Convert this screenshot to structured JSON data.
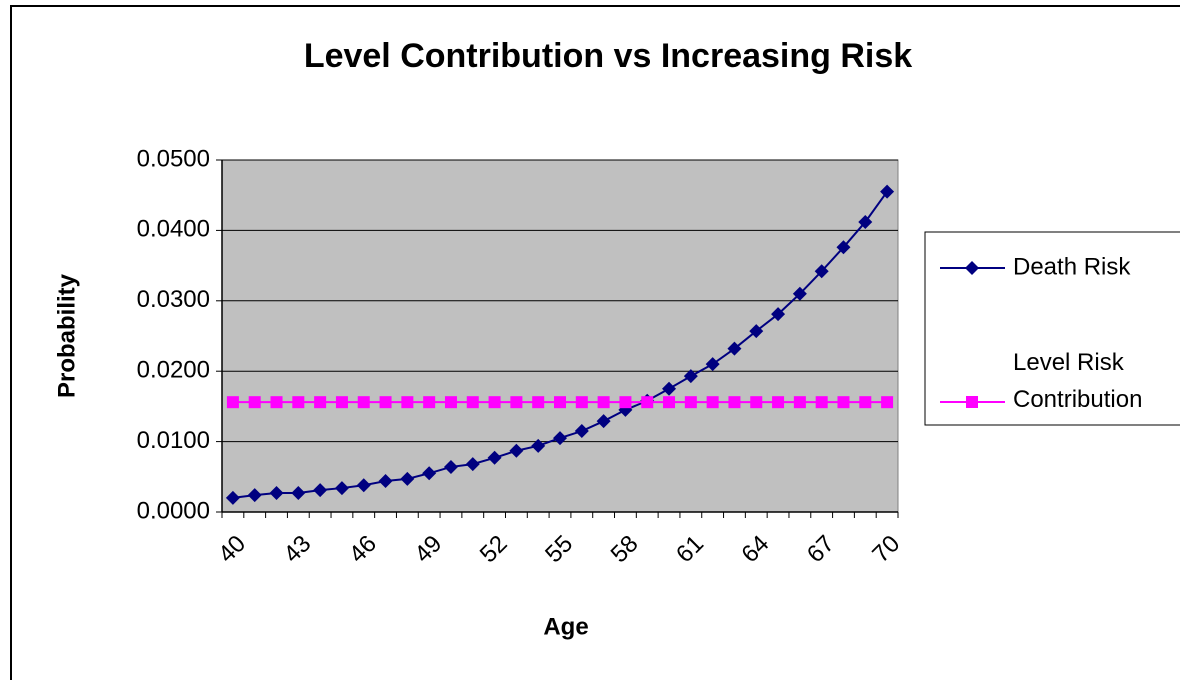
{
  "chart_data": {
    "type": "line",
    "title": "Level Contribution vs Increasing Risk",
    "x_label": "Age",
    "y_label": "Probability",
    "categories": [
      40,
      null,
      null,
      43,
      null,
      null,
      46,
      null,
      null,
      49,
      null,
      null,
      52,
      null,
      null,
      55,
      null,
      null,
      58,
      null,
      null,
      61,
      null,
      null,
      64,
      null,
      null,
      67,
      null,
      null,
      70
    ],
    "series": [
      {
        "name": "Death Risk",
        "color": "#000080",
        "marker": "diamond",
        "values": [
          0.002,
          0.0024,
          0.0027,
          0.0027,
          0.0031,
          0.0034,
          0.0038,
          0.0044,
          0.0047,
          0.0055,
          0.0064,
          0.0068,
          0.0077,
          0.0087,
          0.0094,
          0.0105,
          0.0115,
          0.0129,
          0.0145,
          0.0158,
          0.0175,
          0.0193,
          0.021,
          0.0232,
          0.0257,
          0.0281,
          0.031,
          0.0342,
          0.0376,
          0.0412,
          0.0455
        ]
      },
      {
        "name": "Level Risk Contribution",
        "color": "#ff00ff",
        "marker": "square",
        "values": [
          0.0156,
          0.0156,
          0.0156,
          0.0156,
          0.0156,
          0.0156,
          0.0156,
          0.0156,
          0.0156,
          0.0156,
          0.0156,
          0.0156,
          0.0156,
          0.0156,
          0.0156,
          0.0156,
          0.0156,
          0.0156,
          0.0156,
          0.0156,
          0.0156,
          0.0156,
          0.0156,
          0.0156,
          0.0156,
          0.0156,
          0.0156,
          0.0156,
          0.0156,
          0.0156,
          0.0156
        ]
      }
    ],
    "ylim": [
      0,
      0.05
    ],
    "yticks": [
      {
        "value": 0,
        "label": "0.0000"
      },
      {
        "value": 0.01,
        "label": "0.0100"
      },
      {
        "value": 0.02,
        "label": "0.0200"
      },
      {
        "value": 0.03,
        "label": "0.0300"
      },
      {
        "value": 0.04,
        "label": "0.0400"
      },
      {
        "value": 0.05,
        "label": "0.0500"
      }
    ],
    "grid": true,
    "plot_background": "#c0c0c0",
    "legend": "right"
  }
}
